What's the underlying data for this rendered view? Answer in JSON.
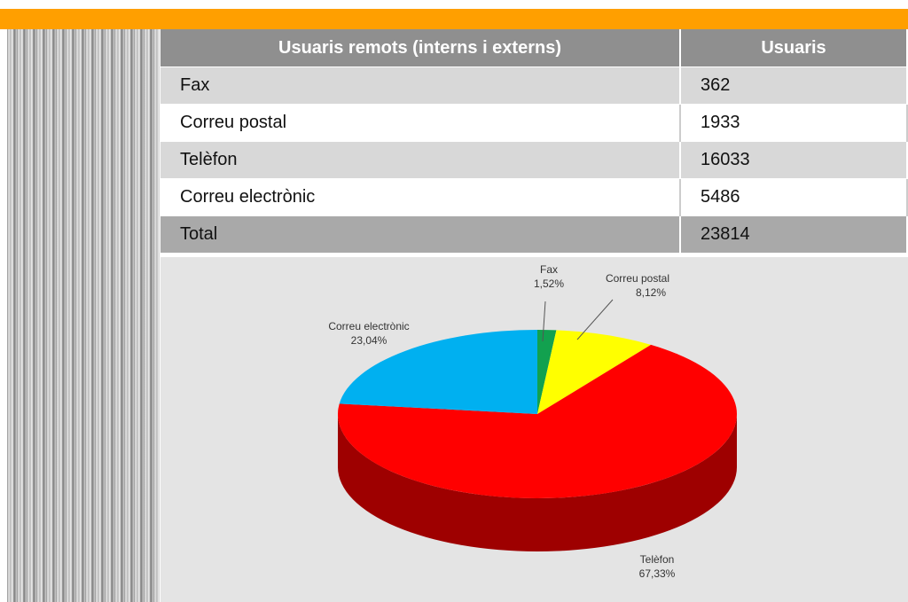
{
  "table": {
    "header": [
      "Usuaris remots (interns i externs)",
      "Usuaris"
    ],
    "rows": [
      [
        "Fax",
        362
      ],
      [
        "Correu postal",
        1933
      ],
      [
        "Telèfon",
        16033
      ],
      [
        "Correu electrònic",
        5486
      ],
      [
        "Total",
        23814
      ]
    ]
  },
  "chart_data": {
    "type": "pie",
    "categories": [
      "Fax",
      "Correu postal",
      "Telèfon",
      "Correu electrònic"
    ],
    "values": [
      1.52,
      8.12,
      67.33,
      23.04
    ],
    "value_labels": [
      "1,52%",
      "8,12%",
      "67,33%",
      "23,04%"
    ],
    "colors": [
      "#12a14f",
      "#ffff00",
      "#ff0000",
      "#00b0f0"
    ]
  }
}
